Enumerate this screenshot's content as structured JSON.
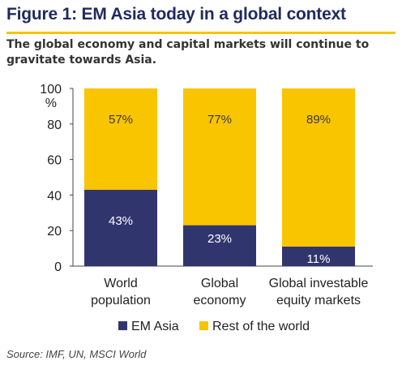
{
  "header": {
    "title": "Figure 1: EM Asia today in a global context",
    "subtitle": "The global economy and capital markets will continue to gravitate towards Asia."
  },
  "source": "Source: IMF, UN, MSCI World",
  "colors": {
    "em_asia": "#31356e",
    "rest": "#f9c400",
    "accent_rule": "#f5c400",
    "title": "#1f2a5e"
  },
  "chart_data": {
    "type": "bar",
    "stacked": true,
    "categories": [
      [
        "World",
        "population"
      ],
      [
        "Global",
        "economy"
      ],
      [
        "Global investable",
        "equity markets"
      ]
    ],
    "series": [
      {
        "name": "EM Asia",
        "values": [
          43,
          23,
          11
        ],
        "labels": [
          "43%",
          "23%",
          "11%"
        ]
      },
      {
        "name": "Rest of the world",
        "values": [
          57,
          77,
          89
        ],
        "labels": [
          "57%",
          "77%",
          "89%"
        ]
      }
    ],
    "ylim": [
      0,
      100
    ],
    "yticks": [
      0,
      20,
      40,
      60,
      80,
      100
    ],
    "yunit": "%",
    "grid": false,
    "legend": "bottom"
  }
}
